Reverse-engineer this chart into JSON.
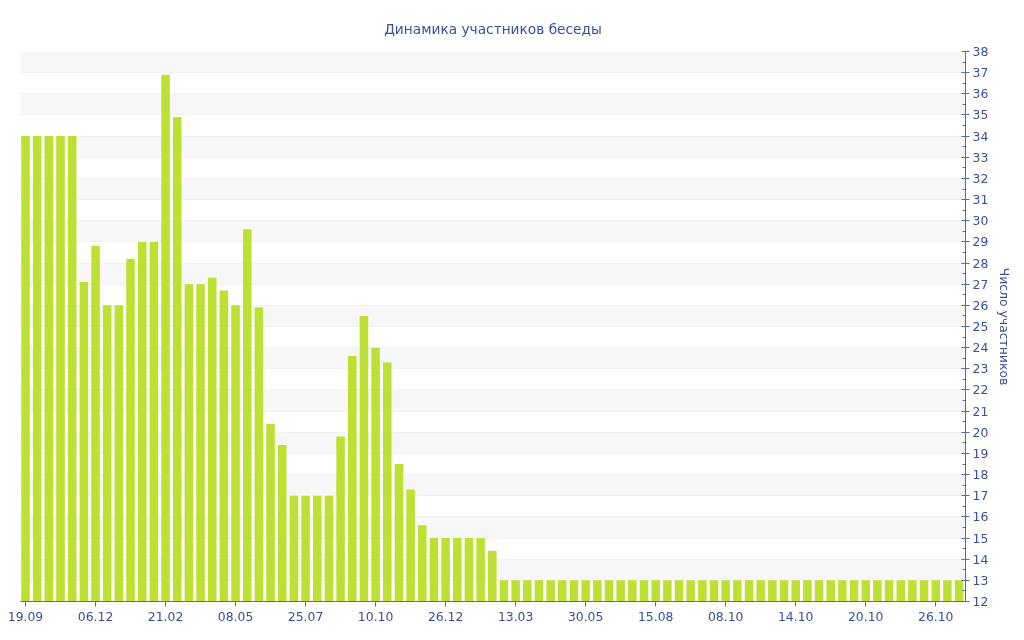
{
  "chart_data": {
    "type": "bar",
    "title": "Динамика участников беседы",
    "ylabel": "Число участников",
    "categories": [
      "19.09",
      null,
      null,
      null,
      null,
      null,
      "06.12",
      null,
      null,
      null,
      null,
      null,
      "21.02",
      null,
      null,
      null,
      null,
      null,
      "08.05",
      null,
      null,
      null,
      null,
      null,
      "25.07",
      null,
      null,
      null,
      null,
      null,
      "10.10",
      null,
      null,
      null,
      null,
      null,
      "26.12",
      null,
      null,
      null,
      null,
      null,
      "13.03",
      null,
      null,
      null,
      null,
      null,
      "30.05",
      null,
      null,
      null,
      null,
      null,
      "15.08",
      null,
      null,
      null,
      null,
      null,
      "08.10",
      null,
      null,
      null,
      null,
      null,
      "14.10",
      null,
      null,
      null,
      null,
      null,
      "20.10",
      null,
      null,
      null,
      null,
      null,
      "26.10",
      null,
      null
    ],
    "values": [
      34,
      34,
      34,
      34,
      34,
      27.1,
      28.8,
      26,
      26,
      28.2,
      29,
      29,
      36.9,
      34.9,
      27,
      27,
      27.3,
      26.7,
      26,
      29.6,
      25.9,
      20.4,
      19.4,
      17,
      17,
      17,
      17,
      19.8,
      23.6,
      25.5,
      24,
      23.3,
      18.5,
      17.3,
      15.6,
      15,
      15,
      15,
      15,
      15,
      14.4,
      13,
      13,
      13,
      13,
      13,
      13,
      13,
      13,
      13,
      13,
      13,
      13,
      13,
      13,
      13,
      13,
      13,
      13,
      13,
      13,
      13,
      13,
      13,
      13,
      13,
      13,
      13,
      13,
      13,
      13,
      13,
      13,
      13,
      13,
      13,
      13,
      13,
      13,
      13,
      13
    ],
    "color": "#bce132",
    "ylim": [
      12,
      38
    ],
    "yticks": [
      12,
      13,
      14,
      15,
      16,
      17,
      18,
      19,
      20,
      21,
      22,
      23,
      24,
      25,
      26,
      27,
      28,
      29,
      30,
      31,
      32,
      33,
      34,
      35,
      36,
      37,
      38
    ],
    "grid": "y"
  }
}
